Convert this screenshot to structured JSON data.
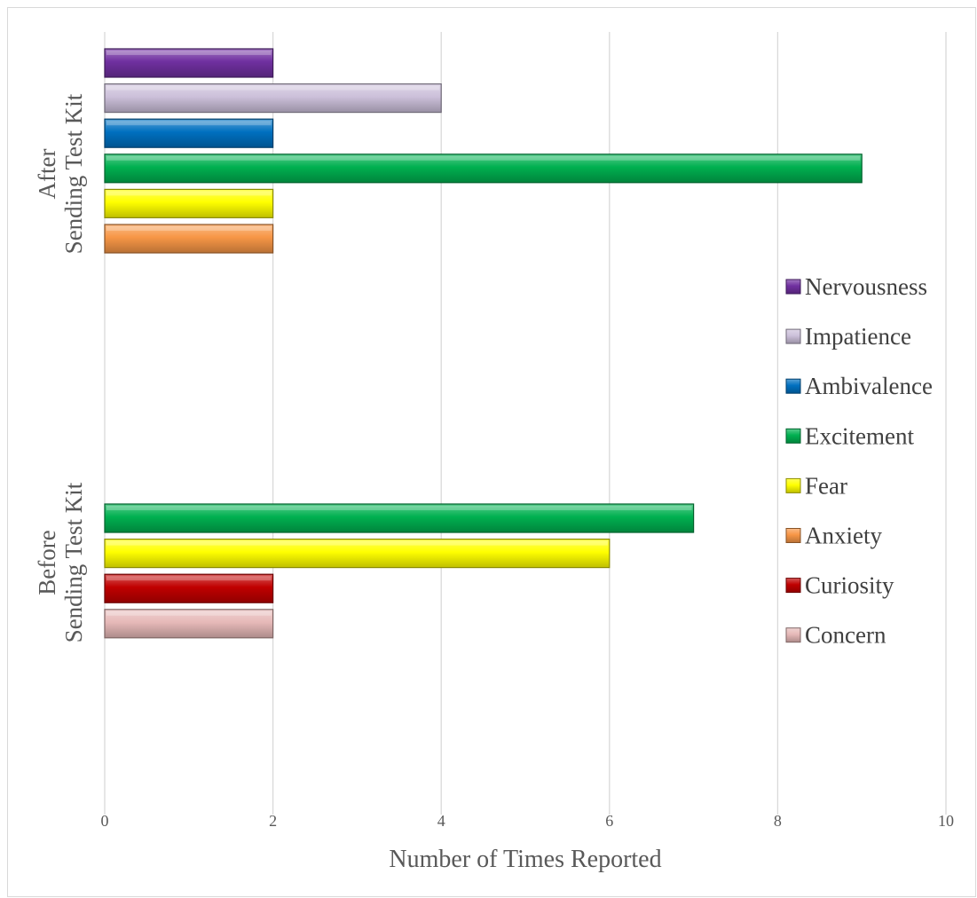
{
  "chart_data": {
    "type": "bar",
    "orientation": "horizontal",
    "title": "",
    "xlabel": "Number of Times Reported",
    "ylabel": "",
    "xlim": [
      0,
      10
    ],
    "x_ticks": [
      "0",
      "2",
      "4",
      "6",
      "8",
      "10"
    ],
    "grid": true,
    "legend_position": "right",
    "groups": [
      {
        "label_lines": [
          "After",
          "Sending Test Kit"
        ],
        "bars": [
          {
            "series": "Nervousness",
            "value": 2
          },
          {
            "series": "Impatience",
            "value": 4
          },
          {
            "series": "Ambivalence",
            "value": 2
          },
          {
            "series": "Excitement",
            "value": 9
          },
          {
            "series": "Fear",
            "value": 2
          },
          {
            "series": "Anxiety",
            "value": 2
          }
        ]
      },
      {
        "label_lines": [
          "Before",
          "Sending Test Kit"
        ],
        "bars": [
          {
            "series": "Excitement",
            "value": 7
          },
          {
            "series": "Fear",
            "value": 6
          },
          {
            "series": "Curiosity",
            "value": 2
          },
          {
            "series": "Concern",
            "value": 2
          }
        ]
      }
    ],
    "series": [
      {
        "name": "Nervousness",
        "color": "#7030a0"
      },
      {
        "name": "Impatience",
        "color": "#ccc0da"
      },
      {
        "name": "Ambivalence",
        "color": "#0070c0"
      },
      {
        "name": "Excitement",
        "color": "#00b050"
      },
      {
        "name": "Fear",
        "color": "#ffff00"
      },
      {
        "name": "Anxiety",
        "color": "#f79646"
      },
      {
        "name": "Curiosity",
        "color": "#c00000"
      },
      {
        "name": "Concern",
        "color": "#e6b9b8"
      }
    ]
  }
}
